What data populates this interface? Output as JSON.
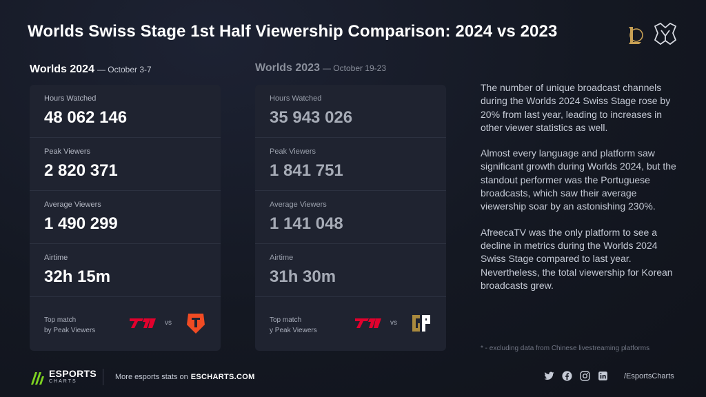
{
  "title": "Worlds Swiss Stage 1st Half Viewership Comparison: 2024 vs 2023",
  "worlds2024": {
    "name": "Worlds 2024",
    "dates": "— October 3-7",
    "stats": [
      {
        "label": "Hours Watched",
        "value": "48 062 146"
      },
      {
        "label": "Peak Viewers",
        "value": "2 820 371"
      },
      {
        "label": "Average Viewers",
        "value": "1 490 299"
      },
      {
        "label": "Airtime",
        "value": "32h 15m"
      }
    ],
    "top_match_line1": "Top match",
    "top_match_line2": "by Peak Viewers",
    "vs": "vs",
    "team_a_icon": "t1-logo-icon",
    "team_b_icon": "top-esports-logo-icon"
  },
  "worlds2023": {
    "name": "Worlds 2023",
    "dates": "— October 19-23",
    "stats": [
      {
        "label": "Hours Watched",
        "value": "35 943 026"
      },
      {
        "label": "Peak Viewers",
        "value": "1 841 751"
      },
      {
        "label": "Average Viewers",
        "value": "1 141 048"
      },
      {
        "label": "Airtime",
        "value": "31h 30m"
      }
    ],
    "top_match_line1": "Top match",
    "top_match_line2": "y Peak Viewers",
    "vs": "vs",
    "team_a_icon": "t1-logo-icon",
    "team_b_icon": "gen-g-logo-icon"
  },
  "description": [
    "The number of unique broadcast channels during the Worlds 2024 Swiss Stage rose by 20% from last year, leading to increases in other viewer statistics as well.",
    "Almost every language and platform saw significant growth during Worlds 2024, but the standout performer was the Portuguese broadcasts, which saw their average viewership soar by an astonishing 230%.",
    "AfreecaTV was the only platform to see a decline in metrics during the Worlds 2024 Swiss Stage compared to last year. Nevertheless, the total viewership for Korean broadcasts grew."
  ],
  "footnote": "* - excluding data from Chinese livestreaming platforms",
  "footer": {
    "brand_line1": "ESPORTS",
    "brand_line2": "CHARTS",
    "more_text": "More esports stats on",
    "site": "ESCHARTS.COM",
    "handle": "/EsportsCharts",
    "social_icons": [
      "twitter-icon",
      "facebook-icon",
      "instagram-icon",
      "linkedin-icon"
    ]
  },
  "colors": {
    "background": "#141822",
    "card": "#1f2330",
    "t1_red": "#e2012d",
    "tes_orange": "#f04b23",
    "geng_gold": "#aa8a3e",
    "brand_green": "#7ed321"
  }
}
